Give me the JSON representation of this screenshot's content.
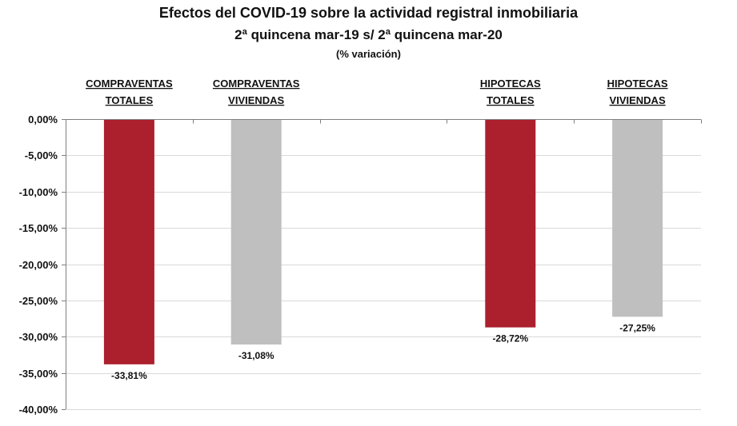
{
  "chart_data": {
    "type": "bar",
    "title": "Efectos del COVID-19 sobre la actividad registral inmobiliaria",
    "subtitle": "2ª quincena  mar-19 s/ 2ª quincena mar-20",
    "subtitle2": "(% variación)",
    "xlabel": "",
    "ylabel": "",
    "ylim": [
      -40,
      0
    ],
    "y_ticks": [
      0,
      -5,
      -10,
      -15,
      -20,
      -25,
      -30,
      -35,
      -40
    ],
    "y_tick_labels": [
      "0,00%",
      "-5,00%",
      "-10,00%",
      "-15,00%",
      "-20,00%",
      "-25,00%",
      "-30,00%",
      "-35,00%",
      "-40,00%"
    ],
    "grid": true,
    "legend": "none",
    "categories": [
      [
        "COMPRAVENTAS",
        "TOTALES"
      ],
      [
        "COMPRAVENTAS",
        "VIVIENDAS"
      ],
      [
        "",
        ""
      ],
      [
        "HIPOTECAS",
        "TOTALES"
      ],
      [
        "HIPOTECAS",
        "VIVIENDAS"
      ]
    ],
    "values": [
      -33.81,
      -31.08,
      null,
      -28.72,
      -27.25
    ],
    "data_labels": [
      "-33,81%",
      "-31,08%",
      "",
      "-28,72%",
      "-27,25%"
    ],
    "colors": [
      "#ac1f2d",
      "#bfbfbf",
      null,
      "#ac1f2d",
      "#bfbfbf"
    ],
    "gridline_color": "#d9d9d9",
    "axis_color": "#7f7f7f"
  }
}
